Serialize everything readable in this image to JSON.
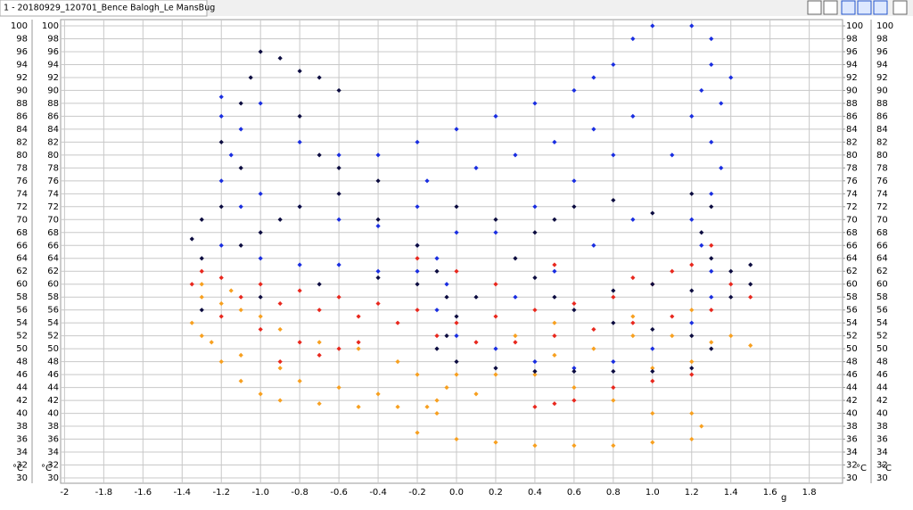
{
  "tab_title": "1 - 20180929_120701_Bence Balogh_Le MansBug",
  "chart_data": {
    "type": "scatter",
    "x_label": "g",
    "y_label": "°C",
    "y2_label": "°C",
    "xlim": [
      -2.02,
      1.97
    ],
    "ylim": [
      30,
      100
    ],
    "y2lim": [
      30,
      100
    ],
    "grid": true,
    "xticks": [
      -2,
      -1.8,
      -1.6,
      -1.4,
      -1.2,
      {
        "value": -1,
        "label": "-1.0"
      },
      -0.8,
      -0.6,
      -0.4,
      -0.2,
      {
        "value": 0,
        "label": "0.0"
      },
      0.2,
      0.4,
      0.6,
      0.8,
      {
        "value": 1,
        "label": "1.0"
      },
      1.2,
      1.4,
      1.6,
      1.8
    ],
    "yticks": [
      30,
      32,
      34,
      36,
      38,
      40,
      42,
      44,
      46,
      48,
      50,
      52,
      54,
      56,
      58,
      60,
      62,
      64,
      66,
      68,
      70,
      72,
      74,
      76,
      78,
      80,
      82,
      84,
      86,
      88,
      90,
      92,
      94,
      96,
      98,
      100
    ],
    "y2ticks": [
      30,
      32,
      34,
      36,
      38,
      40,
      42,
      44,
      46,
      48,
      50,
      52,
      54,
      56,
      58,
      60,
      62,
      64,
      66,
      68,
      70,
      72,
      74,
      76,
      78,
      80,
      82,
      84,
      86,
      88,
      90,
      92,
      94,
      96,
      98,
      100
    ],
    "series": [
      {
        "color": "#f7a020",
        "x": [
          -1.35,
          -1.3,
          -1.2,
          -1.1,
          -1.0,
          -0.9,
          -0.7,
          -0.5,
          -0.3,
          -0.15,
          -0.1,
          -0.2,
          0,
          0.2,
          0.4,
          0.6,
          0.8,
          1.0,
          1.2,
          1.25,
          1.2,
          1.0,
          0.8,
          0.6,
          0.4,
          0.2,
          0,
          -0.2,
          -1.3,
          -1.2,
          -1.1,
          -1.0,
          -0.9,
          -0.7,
          -0.5,
          -0.3,
          0.5,
          0.7,
          0.9,
          1.1,
          1.3,
          1.4,
          1.5,
          1.2,
          1.0,
          -1.25,
          -1.1,
          -0.9,
          -0.8,
          -0.6,
          -0.4,
          0.3,
          0.5,
          0.9,
          1.2,
          -1.3,
          -1.15,
          -0.05,
          -0.1,
          0.1
        ],
        "values": [
          54,
          52,
          48,
          45,
          43,
          42,
          41.5,
          41,
          41,
          41,
          40,
          37,
          36,
          35.5,
          35,
          35,
          35,
          35.5,
          36,
          38,
          40,
          40,
          42,
          44,
          46,
          46,
          46,
          46,
          58,
          57,
          56,
          55,
          53,
          51,
          50,
          48,
          49,
          50,
          52,
          52,
          51,
          52,
          50.5,
          48,
          47,
          51,
          49,
          47,
          45,
          44,
          43,
          52,
          54,
          55,
          56,
          60,
          59,
          44,
          42,
          43
        ]
      },
      {
        "color": "#e8281e",
        "x": [
          -1.3,
          -1.2,
          -1.0,
          -0.8,
          -0.6,
          -0.4,
          -0.2,
          0,
          0.2,
          0.4,
          0.6,
          0.8,
          1.0,
          1.2,
          1.3,
          1.1,
          0.9,
          -1.35,
          -1.1,
          -0.9,
          -0.7,
          -0.5,
          -0.3,
          -0.1,
          0.1,
          0.3,
          0.5,
          0.7,
          0.9,
          1.1,
          1.3,
          0.4,
          0.5,
          0.6,
          0.8,
          1.0,
          1.2,
          -0.6,
          -0.8,
          -1.0,
          -1.2,
          0.2,
          0.0,
          -0.2,
          0.5,
          1.4,
          1.5,
          -0.9,
          -0.7,
          -0.5
        ],
        "values": [
          62,
          61,
          60,
          59,
          58,
          57,
          56,
          54,
          55,
          56,
          57,
          58,
          60,
          63,
          66,
          62,
          61,
          60,
          58,
          57,
          56,
          55,
          54,
          52,
          51,
          51,
          52,
          53,
          54,
          55,
          56,
          41,
          41.5,
          42,
          44,
          45,
          46,
          50,
          51,
          53,
          55,
          60,
          62,
          64,
          63,
          60,
          58,
          48,
          49,
          51
        ]
      },
      {
        "color": "#1a2ee0",
        "x": [
          -1.2,
          -1.1,
          -1.15,
          -1.2,
          -1.1,
          -1.0,
          -0.8,
          -0.6,
          -0.4,
          -0.2,
          -0.1,
          -0.05,
          -0.1,
          0.0,
          0.2,
          0.4,
          0.6,
          0.8,
          1.0,
          1.2,
          1.3,
          1.3,
          1.25,
          1.2,
          1.3,
          1.35,
          1.3,
          1.2,
          1.25,
          1.3,
          1.3,
          1.2,
          1.0,
          0.9,
          0.8,
          0.7,
          0.6,
          0.4,
          0.2,
          0.0,
          -0.2,
          -0.4,
          -0.6,
          -0.8,
          -1.0,
          -1.2,
          0.8,
          0.6,
          0.4,
          0.2,
          0.0,
          -0.2,
          -0.15,
          0.1,
          0.3,
          0.5,
          0.7,
          0.9,
          1.1,
          0.9,
          0.7,
          0.5,
          0.3,
          1.4,
          1.35,
          -1.2,
          -1.0,
          -0.8,
          -0.6,
          -0.4,
          -0.2
        ],
        "values": [
          86,
          84,
          80,
          76,
          72,
          74,
          72,
          70,
          69,
          66,
          64,
          60,
          56,
          52,
          50,
          48,
          47,
          48,
          50,
          54,
          58,
          62,
          66,
          70,
          74,
          78,
          82,
          86,
          90,
          94,
          98,
          100,
          100,
          98,
          94,
          92,
          90,
          88,
          86,
          84,
          82,
          80,
          80,
          82,
          88,
          89,
          80,
          76,
          72,
          68,
          68,
          72,
          76,
          78,
          80,
          82,
          84,
          86,
          80,
          70,
          66,
          62,
          58,
          92,
          88,
          66,
          64,
          63,
          63,
          62,
          62
        ]
      },
      {
        "color": "#0c0c40",
        "x": [
          -1.2,
          -1.3,
          -1.35,
          -1.3,
          -1.1,
          -1.0,
          -0.9,
          -0.8,
          -1.1,
          -1.2,
          -1.1,
          -1.05,
          -1.0,
          -0.9,
          -0.8,
          -0.7,
          -0.6,
          -0.8,
          -0.7,
          -0.6,
          -0.4,
          -0.2,
          -0.1,
          -0.05,
          0.0,
          -0.05,
          -0.1,
          0.0,
          0.2,
          0.4,
          0.6,
          0.8,
          1.0,
          1.2,
          1.3,
          1.2,
          1.0,
          0.8,
          0.6,
          0.5,
          0.4,
          0.3,
          0.4,
          0.5,
          0.6,
          0.8,
          1.0,
          1.2,
          1.3,
          1.25,
          1.3,
          1.4,
          1.5,
          1.5,
          1.4,
          1.2,
          1.0,
          0.8,
          -1.3,
          -1.0,
          -0.7,
          -0.4,
          -0.2,
          0.1,
          -0.4,
          -0.6,
          0.0,
          0.2
        ],
        "values": [
          72,
          70,
          67,
          64,
          66,
          68,
          70,
          72,
          78,
          82,
          88,
          92,
          96,
          95,
          93,
          92,
          90,
          86,
          80,
          74,
          70,
          66,
          62,
          58,
          55,
          52,
          50,
          48,
          47,
          46.5,
          46.5,
          46.5,
          46.5,
          47,
          50,
          52,
          53,
          54,
          56,
          58,
          61,
          64,
          68,
          70,
          72,
          73,
          71,
          74,
          72,
          68,
          64,
          62,
          63,
          60,
          58,
          59,
          60,
          59,
          56,
          58,
          60,
          61,
          60,
          58,
          76,
          78,
          72,
          70
        ]
      }
    ]
  }
}
